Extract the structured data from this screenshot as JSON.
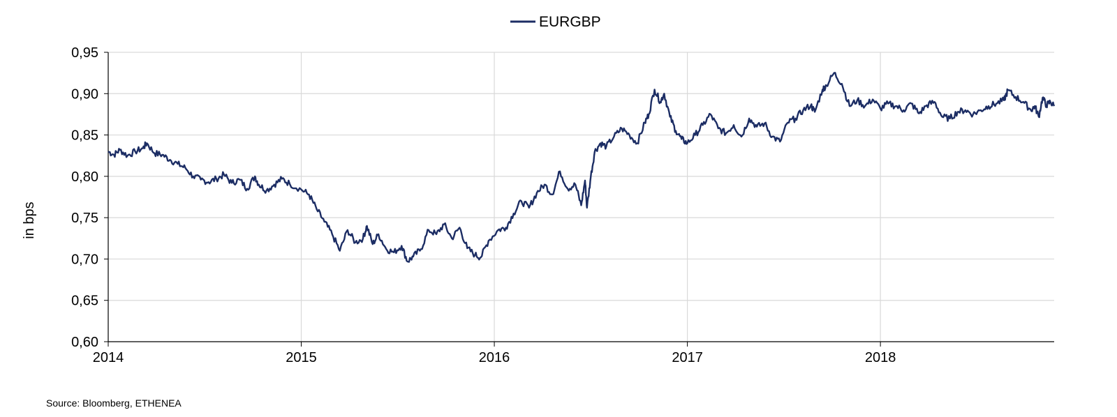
{
  "colors": {
    "series": "#1c2d64",
    "grid": "#d9d9d9",
    "axis": "#000000"
  },
  "chart_data": {
    "type": "line",
    "title": "",
    "xlabel": "",
    "ylabel": "in bps",
    "xlim": [
      2014.0,
      2018.9
    ],
    "ylim": [
      0.6,
      0.95
    ],
    "x_ticks": [
      2014,
      2015,
      2016,
      2017,
      2018
    ],
    "x_tick_labels": [
      "2014",
      "2015",
      "2016",
      "2017",
      "2018"
    ],
    "y_ticks": [
      0.6,
      0.65,
      0.7,
      0.75,
      0.8,
      0.85,
      0.9,
      0.95
    ],
    "y_tick_labels": [
      "0,60",
      "0,65",
      "0,70",
      "0,75",
      "0,80",
      "0,85",
      "0,90",
      "0,95"
    ],
    "grid": true,
    "legend_position": "top-center",
    "series": [
      {
        "name": "EURGBP",
        "x": [
          2014.0,
          2014.03,
          2014.06,
          2014.1,
          2014.14,
          2014.18,
          2014.2,
          2014.24,
          2014.28,
          2014.32,
          2014.36,
          2014.4,
          2014.44,
          2014.48,
          2014.52,
          2014.56,
          2014.6,
          2014.64,
          2014.68,
          2014.72,
          2014.76,
          2014.78,
          2014.82,
          2014.86,
          2014.9,
          2014.94,
          2015.0,
          2015.04,
          2015.08,
          2015.12,
          2015.16,
          2015.2,
          2015.24,
          2015.28,
          2015.32,
          2015.34,
          2015.37,
          2015.4,
          2015.44,
          2015.48,
          2015.52,
          2015.55,
          2015.58,
          2015.62,
          2015.66,
          2015.7,
          2015.74,
          2015.78,
          2015.82,
          2015.86,
          2015.9,
          2015.93,
          2015.97,
          2016.02,
          2016.06,
          2016.1,
          2016.14,
          2016.18,
          2016.22,
          2016.26,
          2016.3,
          2016.34,
          2016.38,
          2016.42,
          2016.45,
          2016.47,
          2016.48,
          2016.5,
          2016.52,
          2016.55,
          2016.58,
          2016.62,
          2016.66,
          2016.7,
          2016.74,
          2016.78,
          2016.8,
          2016.83,
          2016.86,
          2016.88,
          2016.91,
          2016.94,
          2016.97,
          2017.0,
          2017.04,
          2017.08,
          2017.12,
          2017.16,
          2017.2,
          2017.24,
          2017.28,
          2017.32,
          2017.36,
          2017.4,
          2017.44,
          2017.48,
          2017.52,
          2017.56,
          2017.6,
          2017.64,
          2017.66,
          2017.7,
          2017.72,
          2017.76,
          2017.8,
          2017.84,
          2017.88,
          2017.92,
          2017.96,
          2018.0,
          2018.04,
          2018.08,
          2018.12,
          2018.16,
          2018.2,
          2018.24,
          2018.28,
          2018.32,
          2018.36,
          2018.4,
          2018.44,
          2018.48,
          2018.52,
          2018.56,
          2018.6,
          2018.64,
          2018.66,
          2018.7,
          2018.74,
          2018.78,
          2018.8,
          2018.82,
          2018.84,
          2018.86,
          2018.88,
          2018.9
        ],
        "values": [
          0.83,
          0.826,
          0.832,
          0.825,
          0.83,
          0.834,
          0.84,
          0.828,
          0.826,
          0.82,
          0.815,
          0.81,
          0.8,
          0.796,
          0.793,
          0.797,
          0.802,
          0.792,
          0.796,
          0.785,
          0.8,
          0.79,
          0.783,
          0.79,
          0.797,
          0.791,
          0.784,
          0.778,
          0.76,
          0.745,
          0.73,
          0.71,
          0.735,
          0.72,
          0.725,
          0.74,
          0.718,
          0.73,
          0.712,
          0.708,
          0.716,
          0.697,
          0.703,
          0.712,
          0.735,
          0.73,
          0.742,
          0.725,
          0.738,
          0.713,
          0.705,
          0.702,
          0.722,
          0.735,
          0.738,
          0.755,
          0.77,
          0.762,
          0.78,
          0.79,
          0.778,
          0.806,
          0.785,
          0.79,
          0.765,
          0.795,
          0.762,
          0.8,
          0.83,
          0.84,
          0.836,
          0.848,
          0.858,
          0.85,
          0.84,
          0.865,
          0.875,
          0.905,
          0.89,
          0.9,
          0.872,
          0.855,
          0.845,
          0.84,
          0.85,
          0.862,
          0.875,
          0.858,
          0.852,
          0.862,
          0.848,
          0.87,
          0.86,
          0.864,
          0.848,
          0.842,
          0.865,
          0.87,
          0.88,
          0.886,
          0.878,
          0.905,
          0.91,
          0.925,
          0.912,
          0.885,
          0.892,
          0.885,
          0.893,
          0.882,
          0.888,
          0.885,
          0.88,
          0.888,
          0.876,
          0.886,
          0.89,
          0.872,
          0.87,
          0.878,
          0.88,
          0.875,
          0.88,
          0.885,
          0.888,
          0.892,
          0.904,
          0.896,
          0.89,
          0.88,
          0.885,
          0.872,
          0.895,
          0.886,
          0.89,
          0.885
        ]
      }
    ]
  },
  "source_text": "Source: Bloomberg, ETHENEA"
}
